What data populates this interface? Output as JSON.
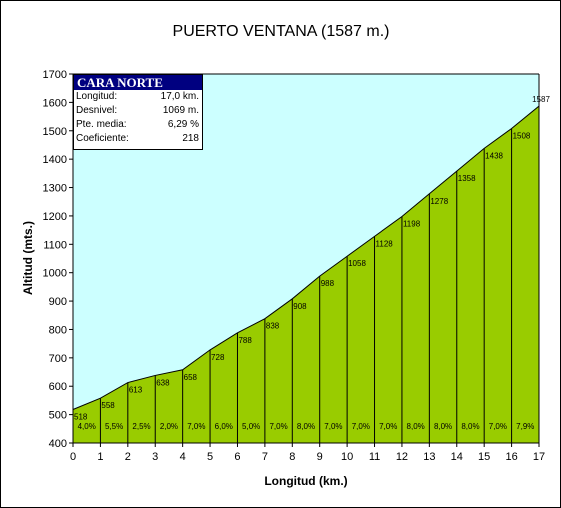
{
  "chart_data": {
    "type": "area",
    "title": "PUERTO VENTANA (1587 m.)",
    "xlabel": "Longitud (km.)",
    "ylabel": "Altitud (mts.)",
    "xlim": [
      0,
      17
    ],
    "ylim": [
      400,
      1700
    ],
    "x_ticks": [
      "0",
      "1",
      "2",
      "3",
      "4",
      "5",
      "6",
      "7",
      "8",
      "9",
      "10",
      "11",
      "12",
      "13",
      "14",
      "15",
      "16",
      "17"
    ],
    "y_ticks": [
      "400",
      "500",
      "600",
      "700",
      "800",
      "900",
      "1000",
      "1100",
      "1200",
      "1300",
      "1400",
      "1500",
      "1600",
      "1700"
    ],
    "x": [
      0,
      1,
      2,
      3,
      4,
      5,
      6,
      7,
      8,
      9,
      10,
      11,
      12,
      13,
      14,
      15,
      16,
      17
    ],
    "altitudes": [
      518,
      558,
      613,
      638,
      658,
      728,
      788,
      838,
      908,
      988,
      1058,
      1128,
      1198,
      1278,
      1358,
      1438,
      1508,
      1587
    ],
    "altitude_labels": [
      "518",
      "558",
      "613",
      "638",
      "658",
      "728",
      "788",
      "838",
      "908",
      "988",
      "1058",
      "1128",
      "1198",
      "1278",
      "1358",
      "1438",
      "1508",
      "1587"
    ],
    "gradients": [
      "4,0%",
      "5,5%",
      "2,5%",
      "2,0%",
      "7,0%",
      "6,0%",
      "5,0%",
      "7,0%",
      "8,0%",
      "7,0%",
      "7,0%",
      "7,0%",
      "8,0%",
      "8,0%",
      "8,0%",
      "7,0%",
      "7,9%"
    ],
    "grid": false,
    "colors": {
      "sky": "#ccffff",
      "profile": "#99cc00"
    }
  },
  "infobox": {
    "title": "CARA NORTE",
    "rows": [
      {
        "label": "Longitud:",
        "value": "17,0 km."
      },
      {
        "label": "Desnivel:",
        "value": "1069 m."
      },
      {
        "label": "Pte. media:",
        "value": "6,29 %"
      },
      {
        "label": "Coeficiente:",
        "value": "218"
      }
    ]
  }
}
